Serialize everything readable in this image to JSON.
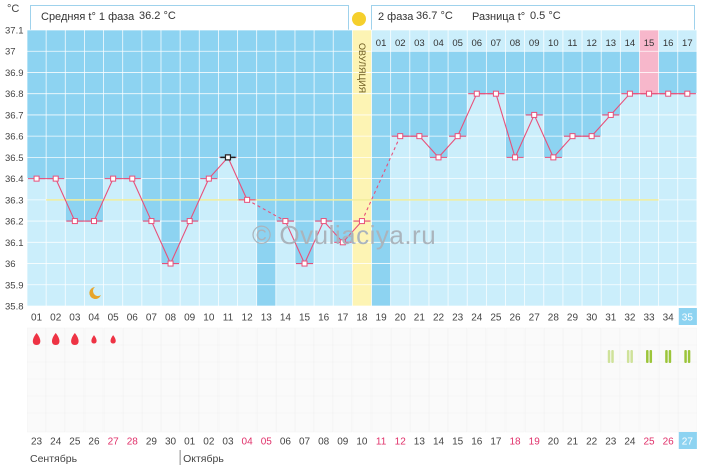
{
  "header": {
    "phase1_label": "Средняя t° 1 фаза",
    "phase1_value": "36.2 °C",
    "phase2_label": "2 фаза",
    "phase2_value": "36.7 °C",
    "diff_label": "Разница t°",
    "diff_value": "0.5 °C"
  },
  "watermark": "© Ovuliaciya.ru",
  "ovulation_label": "ОВУЛЯЦИЯ",
  "colors": {
    "high_band": "#8dd3f1",
    "column_fill": "#cbeefb",
    "grid": "#ffffff",
    "line": "#e8507a",
    "ovulation": "#fdf4b4",
    "coverline": "#f2ee9c",
    "highlight_day": "#f7b7cb",
    "marker": "#e8507a",
    "blood": "#ee3344",
    "current_day": "#8dd3f1"
  },
  "chart_data": {
    "type": "line",
    "title": "",
    "unit": "°C",
    "ylim": [
      35.8,
      37.1
    ],
    "yticks": [
      "37.1",
      "37",
      "36.9",
      "36.8",
      "36.7",
      "36.6",
      "36.5",
      "36.4",
      "36.3",
      "36.2",
      "36.1",
      "36",
      "35.9",
      "35.8"
    ],
    "cycle_days": [
      "01",
      "02",
      "03",
      "04",
      "05",
      "06",
      "07",
      "08",
      "09",
      "10",
      "11",
      "12",
      "13",
      "14",
      "15",
      "16",
      "17",
      "18",
      "19",
      "20",
      "21",
      "22",
      "23",
      "24",
      "25",
      "26",
      "27",
      "28",
      "29",
      "30",
      "31",
      "32",
      "33",
      "34",
      "35"
    ],
    "temperatures": [
      36.4,
      36.4,
      36.2,
      36.2,
      36.4,
      36.4,
      36.2,
      36.0,
      36.2,
      36.4,
      36.5,
      36.3,
      null,
      36.2,
      36.0,
      36.2,
      36.1,
      36.2,
      null,
      36.6,
      36.6,
      36.5,
      36.6,
      36.8,
      36.8,
      36.5,
      36.7,
      36.5,
      36.6,
      36.6,
      36.7,
      36.8,
      36.8,
      36.8,
      36.8
    ],
    "coverline": 36.3,
    "ovulation_day": "18",
    "phase2_days": [
      "01",
      "02",
      "03",
      "04",
      "05",
      "06",
      "07",
      "08",
      "09",
      "10",
      "11",
      "12",
      "13",
      "14",
      "15",
      "16",
      "17"
    ],
    "highlighted_phase2_day": "15",
    "current_day": "35",
    "calendar_dates": [
      "23",
      "24",
      "25",
      "26",
      "27",
      "28",
      "29",
      "30",
      "01",
      "02",
      "03",
      "04",
      "05",
      "06",
      "07",
      "08",
      "09",
      "10",
      "11",
      "12",
      "13",
      "14",
      "15",
      "16",
      "17",
      "18",
      "19",
      "20",
      "21",
      "22",
      "23",
      "24",
      "25",
      "26",
      "27"
    ],
    "weekend_indices": [
      4,
      5,
      11,
      12,
      18,
      19,
      25,
      26,
      32,
      33
    ],
    "months": [
      {
        "name": "Сентябрь",
        "start_index": 0
      },
      {
        "name": "Октябрь",
        "start_index": 8
      }
    ],
    "bleeding": [
      {
        "day": "01",
        "level": "heavy"
      },
      {
        "day": "02",
        "level": "heavy"
      },
      {
        "day": "03",
        "level": "heavy"
      },
      {
        "day": "04",
        "level": "light"
      },
      {
        "day": "05",
        "level": "light"
      }
    ],
    "sex_marker_day": "04",
    "fertility_marks": [
      {
        "day": "31",
        "shade": "light"
      },
      {
        "day": "32",
        "shade": "light"
      },
      {
        "day": "33",
        "shade": "dark"
      },
      {
        "day": "34",
        "shade": "dark"
      },
      {
        "day": "35",
        "shade": "dark"
      }
    ]
  }
}
